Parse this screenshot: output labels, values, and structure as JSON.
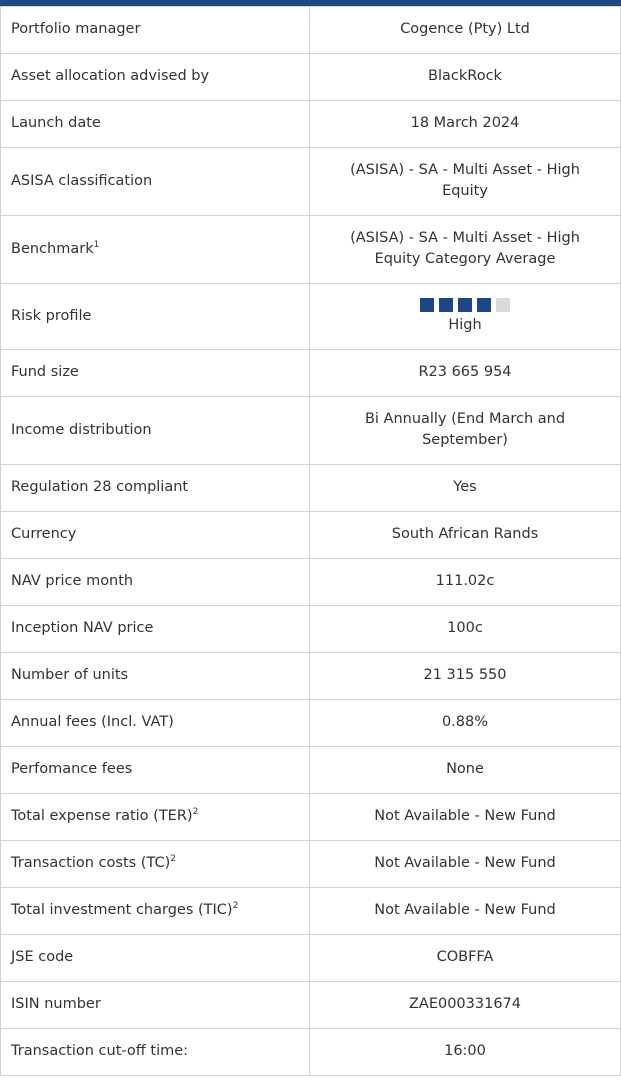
{
  "rows": [
    {
      "label": "Portfolio manager",
      "value": "Cogence (Pty) Ltd"
    },
    {
      "label": "Asset allocation advised by",
      "value": "BlackRock"
    },
    {
      "label": "Launch date",
      "value": "18 March 2024"
    },
    {
      "label": "ASISA classification",
      "value": "(ASISA) - SA - Multi Asset - High Equity"
    },
    {
      "label": "Benchmark",
      "sup": "1",
      "value": "(ASISA) - SA - Multi Asset - High Equity Category Average"
    },
    {
      "label": "Risk profile",
      "value": "High",
      "rating": 4,
      "rating_max": 5
    },
    {
      "label": "Fund size",
      "value": "R23 665 954"
    },
    {
      "label": "Income distribution",
      "value": "Bi Annually (End March and September)"
    },
    {
      "label": "Regulation 28 compliant",
      "value": "Yes"
    },
    {
      "label": "Currency",
      "value": "South African Rands"
    },
    {
      "label": "NAV price month",
      "value": "111.02c"
    },
    {
      "label": "Inception NAV price",
      "value": "100c"
    },
    {
      "label": "Number of units",
      "value": "21 315 550"
    },
    {
      "label": "Annual fees (Incl. VAT)",
      "value": "0.88%"
    },
    {
      "label": "Perfomance fees",
      "value": "None"
    },
    {
      "label": "Total expense ratio (TER)",
      "sup": "2",
      "value": "Not Available - New Fund"
    },
    {
      "label": "Transaction costs (TC)",
      "sup": "2",
      "value": "Not Available - New Fund"
    },
    {
      "label": "Total investment charges (TIC)",
      "sup": "2",
      "value": "Not Available - New Fund"
    },
    {
      "label": "JSE code",
      "value": "COBFFA"
    },
    {
      "label": "ISIN number",
      "value": "ZAE000331674"
    },
    {
      "label": "Transaction cut-off time:",
      "value": "16:00"
    }
  ]
}
